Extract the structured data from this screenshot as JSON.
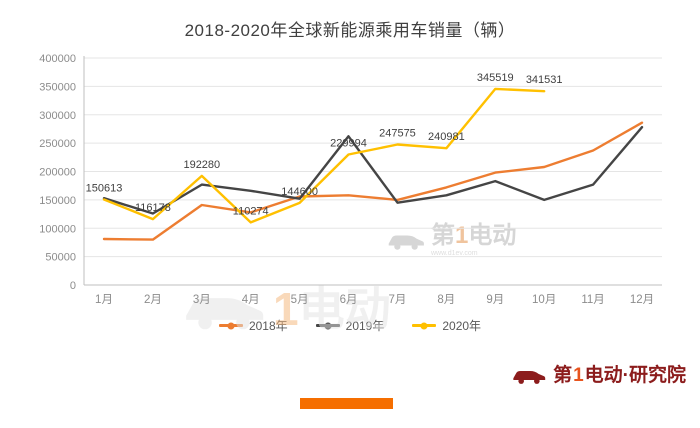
{
  "title": "2018-2020年全球新能源乘用车销量（辆）",
  "colors": {
    "s2018": "#ED7D31",
    "s2019": "#454545",
    "s2020": "#FFC000",
    "grid": "#E5E5E5",
    "axis_line": "#BFBFBF",
    "axis_text": "#8C8C8C",
    "label_text": "#404040",
    "accent_bar": "#F56E00",
    "logo_maroon": "#8C1C1C",
    "logo_digit": "#E8541E"
  },
  "watermark": {
    "prefix": "第",
    "digit": "1",
    "suffix": "电动",
    "sub": "www.d1ev.com"
  },
  "footer_logo": {
    "prefix": "第",
    "digit": "1",
    "suffix": "电动",
    "division": "·研究院"
  },
  "chart_data": {
    "type": "line",
    "title": "2018-2020年全球新能源乘用车销量（辆）",
    "categories": [
      "1月",
      "2月",
      "3月",
      "4月",
      "5月",
      "6月",
      "7月",
      "8月",
      "9月",
      "10月",
      "11月",
      "12月"
    ],
    "series": [
      {
        "name": "2018年",
        "color_key": "s2018",
        "values": [
          81000,
          80000,
          141000,
          128000,
          156000,
          158000,
          150000,
          172000,
          198000,
          208000,
          237000,
          286000
        ],
        "labels": false
      },
      {
        "name": "2019年",
        "color_key": "s2019",
        "values": [
          153000,
          126000,
          177000,
          166000,
          152000,
          262000,
          145000,
          158000,
          183000,
          150000,
          177000,
          278000
        ],
        "labels": false
      },
      {
        "name": "2020年",
        "color_key": "s2020",
        "values": [
          150613,
          116178,
          192280,
          110274,
          144600,
          229994,
          247575,
          240981,
          345519,
          341531
        ],
        "labels": true
      }
    ],
    "ylim": [
      0,
      400000
    ],
    "ytick_step": 50000,
    "grid": true,
    "legend_position": "bottom"
  }
}
